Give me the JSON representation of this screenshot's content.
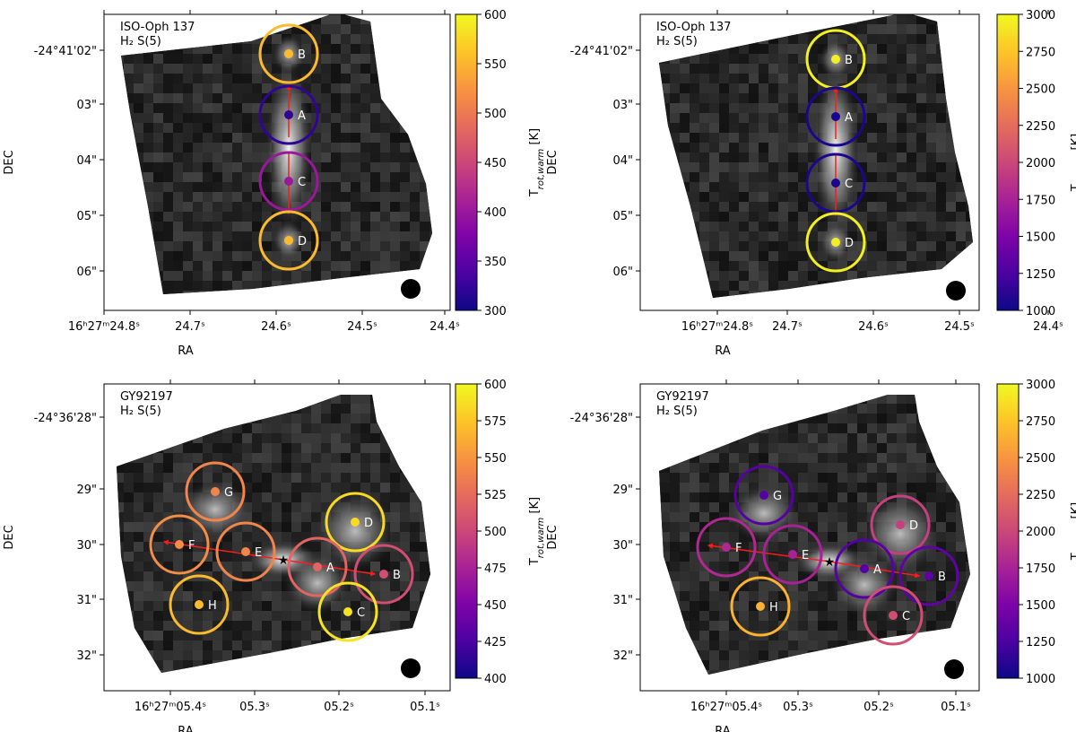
{
  "chart_data": [
    {
      "type": "heatmap",
      "label_line1": "ISO-Oph 137",
      "label_line2": "H₂ S(5)",
      "xlabel": "RA",
      "ylabel": "DEC",
      "x_ticks": [
        "16ʰ27ᵐ24.8ˢ",
        "24.7ˢ",
        "24.6ˢ",
        "24.5ˢ",
        "24.4ˢ"
      ],
      "y_ticks": [
        "-24°41'02\"",
        "03\"",
        "04\"",
        "05\"",
        "06\""
      ],
      "colorbar": {
        "label": "T_rot,warm [K]",
        "range": [
          300,
          600
        ],
        "ticks": [
          "300",
          "350",
          "400",
          "450",
          "500",
          "550",
          "600"
        ]
      },
      "regions": [
        {
          "name": "B",
          "temperature": 555
        },
        {
          "name": "A",
          "temperature": 320
        },
        {
          "name": "C",
          "temperature": 400
        },
        {
          "name": "D",
          "temperature": 555
        }
      ]
    },
    {
      "type": "heatmap",
      "label_line1": "ISO-Oph 137",
      "label_line2": "H₂ S(5)",
      "xlabel": "RA",
      "ylabel": "DEC",
      "x_ticks": [
        "16ʰ27ᵐ24.8ˢ",
        "24.7ˢ",
        "24.6ˢ",
        "24.5ˢ",
        "24.4ˢ"
      ],
      "y_ticks": [
        "-24°41'02\"",
        "03\"",
        "04\"",
        "05\"",
        "06\""
      ],
      "colorbar": {
        "label": "T_rot,hot [K]",
        "range": [
          1000,
          3000
        ],
        "ticks": [
          "1000",
          "1250",
          "1500",
          "1750",
          "2000",
          "2250",
          "2500",
          "2750",
          "3000"
        ]
      },
      "regions": [
        {
          "name": "B",
          "temperature": 2950
        },
        {
          "name": "A",
          "temperature": 1050
        },
        {
          "name": "C",
          "temperature": 1050
        },
        {
          "name": "D",
          "temperature": 2950
        }
      ]
    },
    {
      "type": "heatmap",
      "label_line1": "GY92197",
      "label_line2": "H₂ S(5)",
      "xlabel": "RA",
      "ylabel": "DEC",
      "x_ticks": [
        "16ʰ27ᵐ05.4ˢ",
        "05.3ˢ",
        "05.2ˢ",
        "05.1ˢ"
      ],
      "y_ticks": [
        "-24°36'28\"",
        "29\"",
        "30\"",
        "31\"",
        "32\""
      ],
      "colorbar": {
        "label": "T_rot,warm [K]",
        "range": [
          400,
          600
        ],
        "ticks": [
          "400",
          "425",
          "450",
          "475",
          "500",
          "525",
          "550",
          "575",
          "600"
        ]
      },
      "regions": [
        {
          "name": "G",
          "temperature": 540
        },
        {
          "name": "D",
          "temperature": 585
        },
        {
          "name": "F",
          "temperature": 545
        },
        {
          "name": "E",
          "temperature": 540
        },
        {
          "name": "A",
          "temperature": 520
        },
        {
          "name": "B",
          "temperature": 505
        },
        {
          "name": "H",
          "temperature": 570
        },
        {
          "name": "C",
          "temperature": 590
        }
      ]
    },
    {
      "type": "heatmap",
      "label_line1": "GY92197",
      "label_line2": "H₂ S(5)",
      "xlabel": "RA",
      "ylabel": "DEC",
      "x_ticks": [
        "16ʰ27ᵐ05.4ˢ",
        "05.3ˢ",
        "05.2ˢ",
        "05.1ˢ"
      ],
      "y_ticks": [
        "-24°36'28\"",
        "29\"",
        "30\"",
        "31\"",
        "32\""
      ],
      "colorbar": {
        "label": "T_rot,hot [K]",
        "range": [
          1000,
          3000
        ],
        "ticks": [
          "1000",
          "1250",
          "1500",
          "1750",
          "2000",
          "2250",
          "2500",
          "2750",
          "3000"
        ]
      },
      "regions": [
        {
          "name": "G",
          "temperature": 1300
        },
        {
          "name": "D",
          "temperature": 1950
        },
        {
          "name": "F",
          "temperature": 1800
        },
        {
          "name": "E",
          "temperature": 1750
        },
        {
          "name": "A",
          "temperature": 1300
        },
        {
          "name": "B",
          "temperature": 1350
        },
        {
          "name": "H",
          "temperature": 2650
        },
        {
          "name": "C",
          "temperature": 2050
        }
      ]
    }
  ]
}
